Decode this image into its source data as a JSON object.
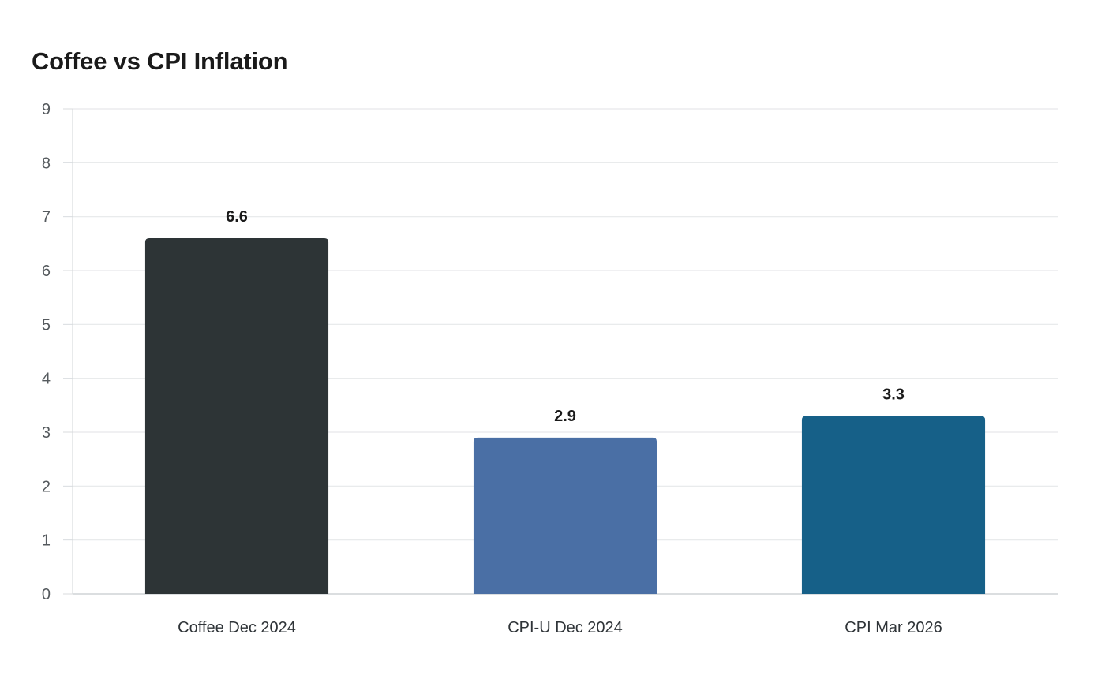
{
  "chart_data": {
    "type": "bar",
    "title": "Coffee vs CPI Inflation",
    "xlabel": "",
    "ylabel": "",
    "categories": [
      "Coffee Dec 2024",
      "CPI-U Dec 2024",
      "CPI Mar 2026"
    ],
    "values": [
      6.6,
      2.9,
      3.3
    ],
    "value_labels": [
      "6.6",
      "2.9",
      "3.3"
    ],
    "colors": [
      "#2d3436",
      "#4a6fa5",
      "#166088"
    ],
    "ylim": [
      0,
      9
    ],
    "yticks": [
      0,
      1,
      2,
      3,
      4,
      5,
      6,
      7,
      8,
      9
    ],
    "grid": true,
    "legend": "none"
  }
}
